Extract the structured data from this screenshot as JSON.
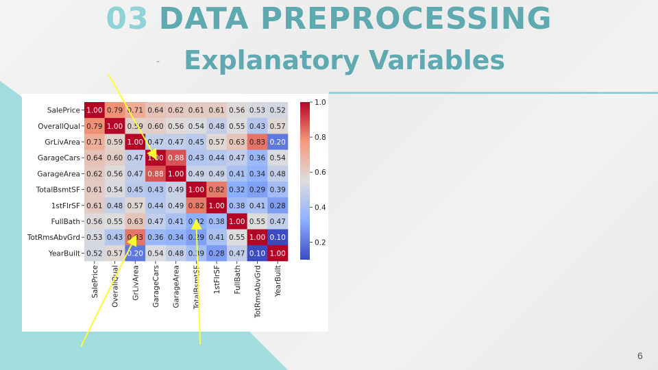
{
  "slide": {
    "title_number": "03",
    "title_text": "DATA PREPROCESSING",
    "subtitle_dash": "-",
    "subtitle": "Explanatory Variables",
    "page_number": "6"
  },
  "colors": {
    "accent": "#5fa9b0",
    "accent_light": "#8fd3d6",
    "arrow": "#ffff33"
  },
  "chart_data": {
    "type": "heatmap",
    "colormap": "coolwarm",
    "rows": [
      "SalePrice",
      "OverallQual",
      "GrLivArea",
      "GarageCars",
      "GarageArea",
      "TotalBsmtSF",
      "1stFlrSF",
      "FullBath",
      "TotRmsAbvGrd",
      "YearBuilt"
    ],
    "columns": [
      "SalePrice",
      "OverallQual",
      "GrLivArea",
      "GarageCars",
      "GarageArea",
      "TotalBsmtSF",
      "1stFlrSF",
      "FullBath",
      "TotRmsAbvGrd",
      "YearBuilt"
    ],
    "values": [
      [
        1.0,
        0.79,
        0.71,
        0.64,
        0.62,
        0.61,
        0.61,
        0.56,
        0.53,
        0.52
      ],
      [
        0.79,
        1.0,
        0.59,
        0.6,
        0.56,
        0.54,
        0.48,
        0.55,
        0.43,
        0.57
      ],
      [
        0.71,
        0.59,
        1.0,
        0.47,
        0.47,
        0.45,
        0.57,
        0.63,
        0.83,
        0.2
      ],
      [
        0.64,
        0.6,
        0.47,
        1.0,
        0.88,
        0.43,
        0.44,
        0.47,
        0.36,
        0.54
      ],
      [
        0.62,
        0.56,
        0.47,
        0.88,
        1.0,
        0.49,
        0.49,
        0.41,
        0.34,
        0.48
      ],
      [
        0.61,
        0.54,
        0.45,
        0.43,
        0.49,
        1.0,
        0.82,
        0.32,
        0.29,
        0.39
      ],
      [
        0.61,
        0.48,
        0.57,
        0.44,
        0.49,
        0.82,
        1.0,
        0.38,
        0.41,
        0.28
      ],
      [
        0.56,
        0.55,
        0.63,
        0.47,
        0.41,
        0.32,
        0.38,
        1.0,
        0.55,
        0.47
      ],
      [
        0.53,
        0.43,
        0.83,
        0.36,
        0.34,
        0.29,
        0.41,
        0.55,
        1.0,
        0.1
      ],
      [
        0.52,
        0.57,
        0.2,
        0.54,
        0.48,
        0.39,
        0.28,
        0.47,
        0.1,
        1.0
      ]
    ],
    "value_range": [
      0.1,
      1.0
    ],
    "colorbar_ticks": [
      "0.2",
      "0.4",
      "0.6",
      "0.8",
      "1.0"
    ],
    "colorbar_tick_values": [
      0.2,
      0.4,
      0.6,
      0.8,
      1.0
    ],
    "annotations": [
      {
        "type": "arrow",
        "target_row": 3,
        "target_col": 3
      },
      {
        "type": "arrow",
        "target_row": 8,
        "target_col": 2
      },
      {
        "type": "arrow",
        "target_row": 7,
        "target_col": 5
      }
    ]
  }
}
